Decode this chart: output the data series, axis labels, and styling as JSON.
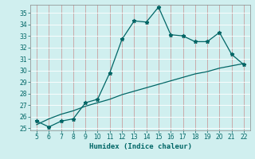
{
  "xlabel": "Humidex (Indice chaleur)",
  "x_values": [
    5,
    6,
    7,
    8,
    9,
    10,
    11,
    12,
    13,
    14,
    15,
    16,
    17,
    18,
    19,
    20,
    21,
    22
  ],
  "curve1_y": [
    25.6,
    25.1,
    25.6,
    25.8,
    27.2,
    27.5,
    29.8,
    32.7,
    34.3,
    34.2,
    35.5,
    33.1,
    33.0,
    32.5,
    32.5,
    33.3,
    31.4,
    30.5
  ],
  "curve2_y": [
    25.3,
    25.8,
    26.2,
    26.5,
    26.9,
    27.2,
    27.5,
    27.9,
    28.2,
    28.5,
    28.8,
    29.1,
    29.4,
    29.7,
    29.9,
    30.2,
    30.4,
    30.6
  ],
  "line_color": "#006666",
  "bg_color": "#d0efef",
  "grid_color_v": "#c8a0a0",
  "grid_color_h": "#ffffff",
  "tick_color": "#006666",
  "ylim": [
    24.8,
    35.7
  ],
  "yticks": [
    25,
    26,
    27,
    28,
    29,
    30,
    31,
    32,
    33,
    34,
    35
  ],
  "xlim": [
    4.5,
    22.5
  ],
  "xticks": [
    5,
    6,
    7,
    8,
    9,
    10,
    11,
    12,
    13,
    14,
    15,
    16,
    17,
    18,
    19,
    20,
    21,
    22
  ]
}
